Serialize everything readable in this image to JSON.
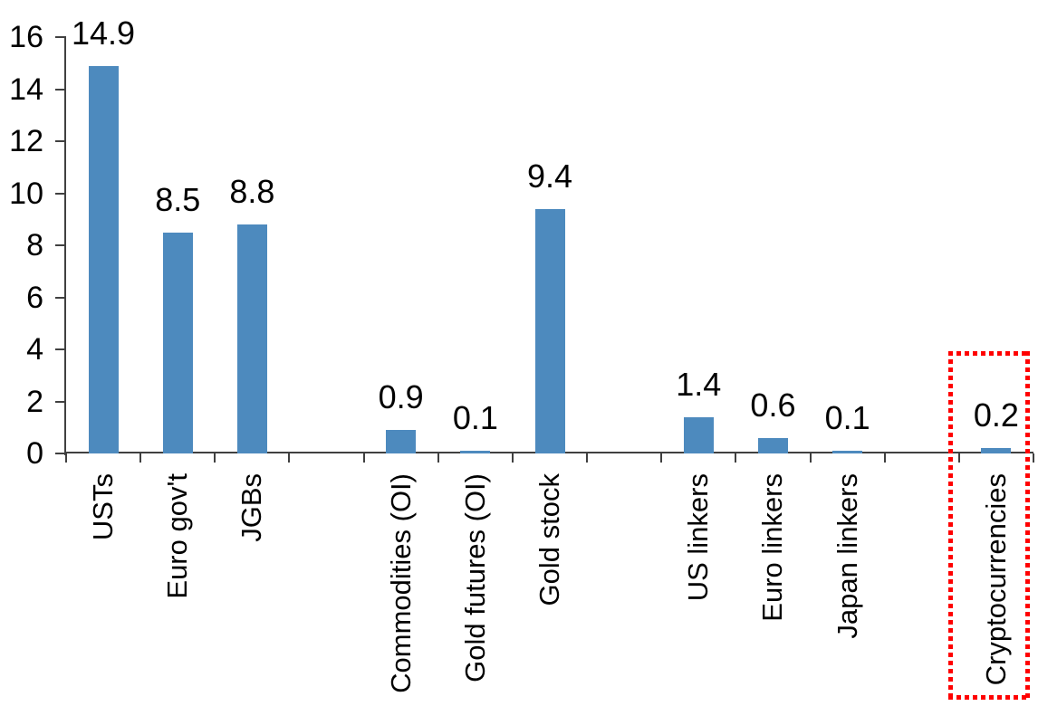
{
  "chart_data": {
    "type": "bar",
    "title": "",
    "xlabel": "",
    "ylabel": "",
    "categories": [
      "USTs",
      "Euro gov't",
      "JGBs",
      "Commodities (OI)",
      "Gold futures (OI)",
      "Gold stock",
      "US linkers",
      "Euro linkers",
      "Japan linkers",
      "Cryptocurrencies"
    ],
    "values": [
      14.9,
      8.5,
      8.8,
      0.9,
      0.1,
      9.4,
      1.4,
      0.6,
      0.1,
      0.2
    ],
    "value_labels": [
      "14.9",
      "8.5",
      "8.8",
      "0.9",
      "0.1",
      "9.4",
      "1.4",
      "0.6",
      "0.1",
      "0.2"
    ],
    "yticks": [
      "16",
      "14",
      "12",
      "10",
      "8",
      "6",
      "4",
      "2",
      "0"
    ],
    "ytick_values": [
      16,
      14,
      12,
      10,
      8,
      6,
      4,
      2,
      0
    ],
    "ylim": [
      0,
      16
    ],
    "gridlines": false,
    "legend": false,
    "bar_color": "#4D8ABE",
    "axis_color": "#404040",
    "label_color": "#000000",
    "highlight": {
      "category": "Cryptocurrencies",
      "style": "red-dotted-rectangle",
      "color": "#FF0000"
    },
    "layout": {
      "slot_count": 13,
      "slot_assignments": [
        0,
        1,
        2,
        null,
        3,
        4,
        5,
        null,
        6,
        7,
        8,
        null,
        9
      ],
      "x_label_rotation_deg": -90,
      "legend_position": "none"
    }
  }
}
